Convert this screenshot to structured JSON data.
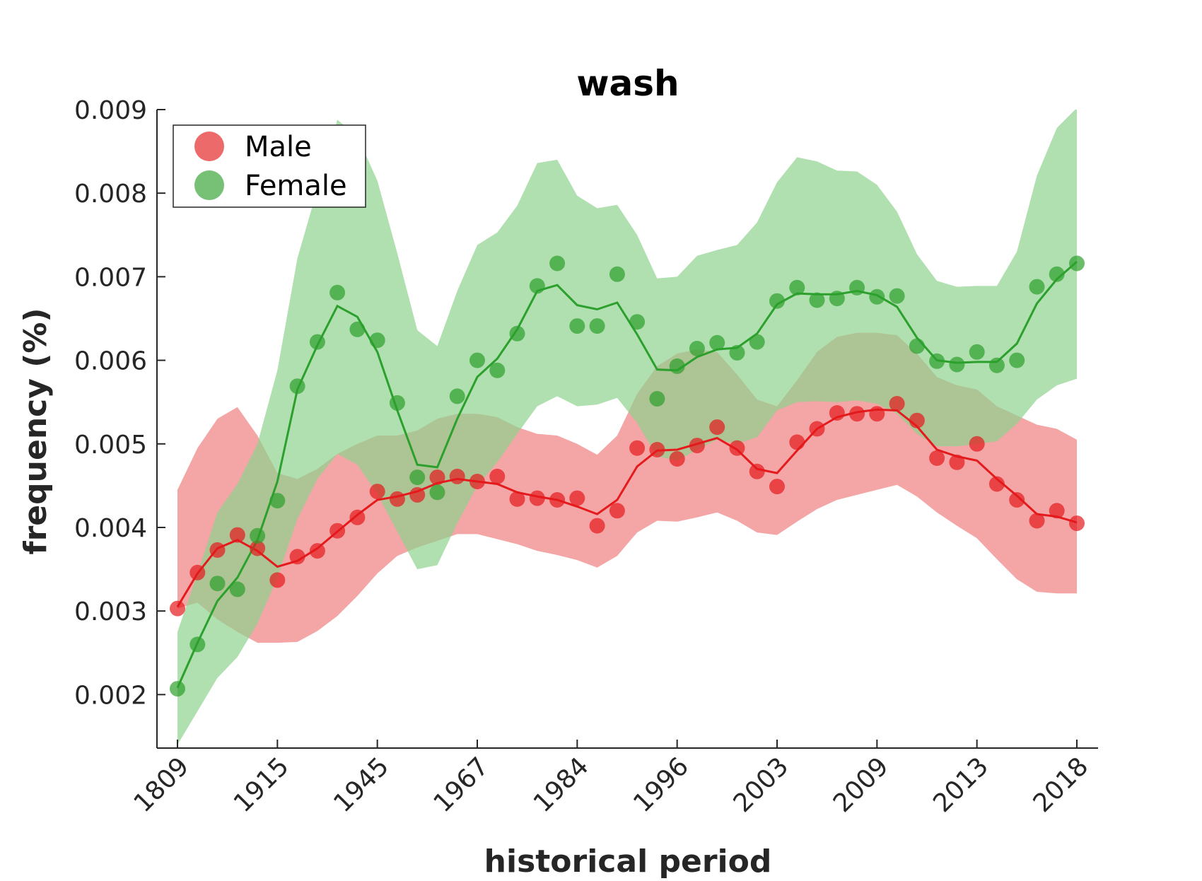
{
  "chart_data": {
    "type": "scatter",
    "title": "wash",
    "xlabel": "historical period",
    "ylabel": "frequency (%)",
    "ylim": [
      0.00136,
      0.009
    ],
    "yticks": [
      "0.002",
      "0.003",
      "0.004",
      "0.005",
      "0.006",
      "0.007",
      "0.008",
      "0.009"
    ],
    "ytick_values": [
      0.002,
      0.003,
      0.004,
      0.005,
      0.006,
      0.007,
      0.008,
      0.009
    ],
    "xtick_labels": [
      "1809",
      "1915",
      "1945",
      "1967",
      "1984",
      "1996",
      "2003",
      "2009",
      "2013",
      "2018"
    ],
    "xtick_index": [
      0,
      5,
      10,
      15,
      20,
      25,
      30,
      35,
      40,
      45
    ],
    "n_points": 46,
    "legend": {
      "position": "top-left"
    },
    "grid": false,
    "series": [
      {
        "name": "Male",
        "color": "#e41a1c",
        "band_color": "#f08080",
        "points": [
          0.00303,
          0.00346,
          0.00373,
          0.00391,
          0.00375,
          0.00337,
          0.00365,
          0.00372,
          0.00396,
          0.00412,
          0.00443,
          0.00434,
          0.00439,
          0.0046,
          0.00461,
          0.00455,
          0.00461,
          0.00434,
          0.00435,
          0.00433,
          0.00435,
          0.00402,
          0.0042,
          0.00495,
          0.00493,
          0.00482,
          0.00498,
          0.0052,
          0.00495,
          0.00467,
          0.00449,
          0.00502,
          0.00518,
          0.00537,
          0.00536,
          0.00536,
          0.00548,
          0.00528,
          0.00483,
          0.00478,
          0.005,
          0.00452,
          0.00433,
          0.00408,
          0.0042,
          0.00405
        ],
        "trend": [
          0.00305,
          0.00345,
          0.00375,
          0.00385,
          0.00372,
          0.00353,
          0.0036,
          0.00375,
          0.00395,
          0.00415,
          0.00433,
          0.00437,
          0.00443,
          0.00453,
          0.00458,
          0.00455,
          0.00452,
          0.00442,
          0.00437,
          0.00433,
          0.00425,
          0.00416,
          0.00433,
          0.00473,
          0.00492,
          0.00493,
          0.005,
          0.00507,
          0.00493,
          0.0047,
          0.00465,
          0.00492,
          0.00518,
          0.00532,
          0.00538,
          0.00541,
          0.0054,
          0.00521,
          0.00493,
          0.00485,
          0.0048,
          0.00458,
          0.00438,
          0.00416,
          0.00413,
          0.00406
        ],
        "band_low": [
          0.00303,
          0.0031,
          0.0029,
          0.00275,
          0.00262,
          0.00262,
          0.00263,
          0.00276,
          0.00294,
          0.00318,
          0.00345,
          0.00366,
          0.00376,
          0.00384,
          0.00392,
          0.00392,
          0.00386,
          0.0038,
          0.00372,
          0.00367,
          0.00361,
          0.00352,
          0.00366,
          0.00394,
          0.00408,
          0.00407,
          0.00412,
          0.00418,
          0.00408,
          0.00394,
          0.00391,
          0.00407,
          0.00422,
          0.00433,
          0.00439,
          0.00445,
          0.00451,
          0.00437,
          0.00418,
          0.00402,
          0.00387,
          0.00362,
          0.00338,
          0.00323,
          0.00321,
          0.00321
        ],
        "band_high": [
          0.00445,
          0.00495,
          0.0053,
          0.00544,
          0.0051,
          0.00465,
          0.00458,
          0.0047,
          0.00488,
          0.005,
          0.0051,
          0.0051,
          0.00516,
          0.0053,
          0.00536,
          0.00536,
          0.00532,
          0.0052,
          0.00512,
          0.0051,
          0.005,
          0.00487,
          0.0051,
          0.0056,
          0.00593,
          0.00608,
          0.00613,
          0.0061,
          0.00583,
          0.00553,
          0.00545,
          0.00576,
          0.0061,
          0.00628,
          0.00633,
          0.00633,
          0.0063,
          0.00608,
          0.0058,
          0.0057,
          0.00565,
          0.00545,
          0.00534,
          0.00523,
          0.00518,
          0.00505
        ]
      },
      {
        "name": "Female",
        "color": "#2ca02c",
        "band_color": "#8fd18f",
        "points": [
          0.00207,
          0.0026,
          0.00333,
          0.00326,
          0.0039,
          0.00432,
          0.00569,
          0.00622,
          0.00681,
          0.00637,
          0.00624,
          0.00549,
          0.0046,
          0.00442,
          0.00557,
          0.006,
          0.00588,
          0.00632,
          0.00689,
          0.00716,
          0.00641,
          0.00641,
          0.00703,
          0.00646,
          0.00554,
          0.00593,
          0.00614,
          0.00621,
          0.00609,
          0.00622,
          0.00671,
          0.00687,
          0.00672,
          0.00674,
          0.00687,
          0.00676,
          0.00677,
          0.00617,
          0.00599,
          0.00595,
          0.0061,
          0.00594,
          0.006,
          0.00688,
          0.00703,
          0.00716
        ],
        "trend": [
          0.00208,
          0.00262,
          0.00312,
          0.0034,
          0.00385,
          0.00455,
          0.00565,
          0.00618,
          0.00665,
          0.00652,
          0.0061,
          0.0054,
          0.00475,
          0.00472,
          0.0053,
          0.0058,
          0.00602,
          0.00637,
          0.00683,
          0.0069,
          0.00666,
          0.00661,
          0.00669,
          0.00631,
          0.00589,
          0.00588,
          0.00604,
          0.00613,
          0.00615,
          0.00632,
          0.00667,
          0.0068,
          0.00679,
          0.00679,
          0.00683,
          0.00678,
          0.00664,
          0.00627,
          0.006,
          0.00597,
          0.00598,
          0.00598,
          0.0062,
          0.00668,
          0.00697,
          0.00718
        ],
        "band_low": [
          0.0014,
          0.0018,
          0.0022,
          0.00245,
          0.00285,
          0.0034,
          0.0041,
          0.00458,
          0.00488,
          0.00475,
          0.0044,
          0.00395,
          0.0035,
          0.00355,
          0.00405,
          0.0045,
          0.00478,
          0.00512,
          0.00545,
          0.00557,
          0.00545,
          0.00547,
          0.00555,
          0.00525,
          0.00485,
          0.0048,
          0.00493,
          0.00505,
          0.005,
          0.00508,
          0.0054,
          0.0055,
          0.00551,
          0.0055,
          0.00552,
          0.00548,
          0.00536,
          0.00512,
          0.00497,
          0.00497,
          0.005,
          0.00503,
          0.00524,
          0.00553,
          0.0057,
          0.00578
        ],
        "band_high": [
          0.00275,
          0.00345,
          0.00418,
          0.00452,
          0.005,
          0.00588,
          0.00722,
          0.00805,
          0.00888,
          0.00868,
          0.00815,
          0.00728,
          0.00636,
          0.00617,
          0.00683,
          0.00738,
          0.00753,
          0.00785,
          0.00836,
          0.0084,
          0.00797,
          0.00782,
          0.00786,
          0.0075,
          0.00698,
          0.007,
          0.00725,
          0.00732,
          0.00738,
          0.00765,
          0.00813,
          0.00843,
          0.00838,
          0.00827,
          0.00826,
          0.0081,
          0.00778,
          0.00727,
          0.00695,
          0.00688,
          0.00689,
          0.00689,
          0.0073,
          0.00821,
          0.00878,
          0.00902
        ]
      }
    ]
  }
}
